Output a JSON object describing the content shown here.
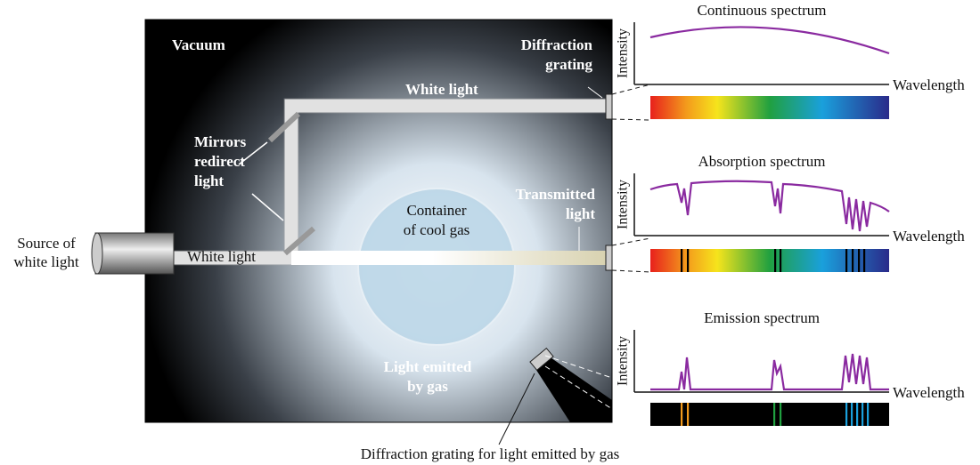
{
  "labels": {
    "vacuum": "Vacuum",
    "grating": [
      "Diffraction",
      "grating"
    ],
    "white_light_top": "White light",
    "mirrors": [
      "Mirrors",
      "redirect",
      "light"
    ],
    "container": [
      "Container",
      "of cool gas"
    ],
    "transmitted": [
      "Transmitted",
      "light"
    ],
    "source": [
      "Source of",
      "white light"
    ],
    "white_light_bottom": "White light",
    "emitted": [
      "Light emitted",
      "by gas"
    ],
    "grating_emitted": "Diffraction grating for light emitted by gas"
  },
  "spectra": [
    {
      "title": "Continuous spectrum",
      "y_label": "Intensity",
      "x_label": "Wavelength"
    },
    {
      "title": "Absorption spectrum",
      "y_label": "Intensity",
      "x_label": "Wavelength"
    },
    {
      "title": "Emission spectrum",
      "y_label": "Intensity",
      "x_label": "Wavelength"
    }
  ]
}
